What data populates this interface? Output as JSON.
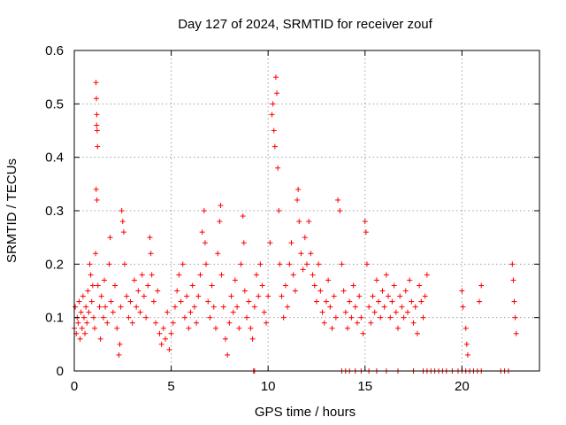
{
  "chart_data": {
    "type": "scatter",
    "title": "Day 127 of 2024, SRMTID for receiver zouf",
    "xlabel": "GPS time / hours",
    "ylabel": "SRMTID / TECUs",
    "xlim": [
      0,
      24
    ],
    "ylim": [
      0,
      0.6
    ],
    "x_ticks": [
      0,
      5,
      10,
      15,
      20
    ],
    "x_tick_labels": [
      "0",
      "5",
      "10",
      "15",
      "20"
    ],
    "y_ticks": [
      0,
      0.1,
      0.2,
      0.3,
      0.4,
      0.5,
      0.6
    ],
    "y_tick_labels": [
      "0",
      "0.1",
      "0.2",
      "0.3",
      "0.4",
      "0.5",
      "0.6"
    ],
    "grid": true,
    "marker": "+",
    "color": "#ff0000",
    "series": [
      {
        "name": "SRMTID",
        "points": [
          [
            0.0,
            0.08
          ],
          [
            0.05,
            0.12
          ],
          [
            0.1,
            0.07
          ],
          [
            0.15,
            0.1
          ],
          [
            0.2,
            0.09
          ],
          [
            0.25,
            0.13
          ],
          [
            0.3,
            0.06
          ],
          [
            0.35,
            0.11
          ],
          [
            0.4,
            0.08
          ],
          [
            0.45,
            0.14
          ],
          [
            0.5,
            0.1
          ],
          [
            0.55,
            0.07
          ],
          [
            0.6,
            0.12
          ],
          [
            0.65,
            0.09
          ],
          [
            0.7,
            0.15
          ],
          [
            0.75,
            0.11
          ],
          [
            0.8,
            0.2
          ],
          [
            0.85,
            0.18
          ],
          [
            0.9,
            0.13
          ],
          [
            0.95,
            0.16
          ],
          [
            1.0,
            0.1
          ],
          [
            1.05,
            0.08
          ],
          [
            1.1,
            0.22
          ],
          [
            1.12,
            0.54
          ],
          [
            1.14,
            0.51
          ],
          [
            1.16,
            0.48
          ],
          [
            1.18,
            0.45
          ],
          [
            1.2,
            0.42
          ],
          [
            1.15,
            0.46
          ],
          [
            1.13,
            0.34
          ],
          [
            1.17,
            0.32
          ],
          [
            1.22,
            0.16
          ],
          [
            1.3,
            0.12
          ],
          [
            1.35,
            0.06
          ],
          [
            1.4,
            0.14
          ],
          [
            1.5,
            0.1
          ],
          [
            1.55,
            0.17
          ],
          [
            1.6,
            0.12
          ],
          [
            1.7,
            0.09
          ],
          [
            1.8,
            0.2
          ],
          [
            1.85,
            0.25
          ],
          [
            1.9,
            0.13
          ],
          [
            2.0,
            0.11
          ],
          [
            2.1,
            0.16
          ],
          [
            2.2,
            0.08
          ],
          [
            2.3,
            0.03
          ],
          [
            2.35,
            0.05
          ],
          [
            2.4,
            0.12
          ],
          [
            2.45,
            0.3
          ],
          [
            2.5,
            0.28
          ],
          [
            2.55,
            0.26
          ],
          [
            2.6,
            0.2
          ],
          [
            2.7,
            0.14
          ],
          [
            2.8,
            0.1
          ],
          [
            2.9,
            0.13
          ],
          [
            3.0,
            0.09
          ],
          [
            3.1,
            0.17
          ],
          [
            3.2,
            0.12
          ],
          [
            3.3,
            0.15
          ],
          [
            3.4,
            0.11
          ],
          [
            3.5,
            0.18
          ],
          [
            3.6,
            0.14
          ],
          [
            3.7,
            0.1
          ],
          [
            3.8,
            0.16
          ],
          [
            3.9,
            0.25
          ],
          [
            3.95,
            0.22
          ],
          [
            4.0,
            0.18
          ],
          [
            4.1,
            0.13
          ],
          [
            4.2,
            0.09
          ],
          [
            4.3,
            0.15
          ],
          [
            4.4,
            0.07
          ],
          [
            4.5,
            0.05
          ],
          [
            4.6,
            0.08
          ],
          [
            4.7,
            0.06
          ],
          [
            4.8,
            0.11
          ],
          [
            4.9,
            0.04
          ],
          [
            5.0,
            0.07
          ],
          [
            5.1,
            0.09
          ],
          [
            5.2,
            0.12
          ],
          [
            5.3,
            0.15
          ],
          [
            5.4,
            0.18
          ],
          [
            5.5,
            0.13
          ],
          [
            5.6,
            0.2
          ],
          [
            5.7,
            0.1
          ],
          [
            5.8,
            0.14
          ],
          [
            5.9,
            0.08
          ],
          [
            6.0,
            0.11
          ],
          [
            6.1,
            0.16
          ],
          [
            6.2,
            0.12
          ],
          [
            6.3,
            0.09
          ],
          [
            6.4,
            0.14
          ],
          [
            6.5,
            0.18
          ],
          [
            6.6,
            0.26
          ],
          [
            6.7,
            0.3
          ],
          [
            6.75,
            0.24
          ],
          [
            6.8,
            0.2
          ],
          [
            6.9,
            0.13
          ],
          [
            7.0,
            0.1
          ],
          [
            7.1,
            0.16
          ],
          [
            7.2,
            0.12
          ],
          [
            7.3,
            0.08
          ],
          [
            7.4,
            0.22
          ],
          [
            7.5,
            0.28
          ],
          [
            7.55,
            0.31
          ],
          [
            7.6,
            0.18
          ],
          [
            7.7,
            0.12
          ],
          [
            7.8,
            0.06
          ],
          [
            7.9,
            0.03
          ],
          [
            8.0,
            0.09
          ],
          [
            8.1,
            0.14
          ],
          [
            8.2,
            0.11
          ],
          [
            8.3,
            0.17
          ],
          [
            8.4,
            0.12
          ],
          [
            8.5,
            0.08
          ],
          [
            8.6,
            0.2
          ],
          [
            8.7,
            0.29
          ],
          [
            8.75,
            0.24
          ],
          [
            8.8,
            0.15
          ],
          [
            8.9,
            0.1
          ],
          [
            9.0,
            0.13
          ],
          [
            9.1,
            0.08
          ],
          [
            9.2,
            0.06
          ],
          [
            9.3,
            0.12
          ],
          [
            9.4,
            0.18
          ],
          [
            9.5,
            0.14
          ],
          [
            9.6,
            0.2
          ],
          [
            9.7,
            0.16
          ],
          [
            9.8,
            0.11
          ],
          [
            9.9,
            0.09
          ],
          [
            10.0,
            0.14
          ],
          [
            10.1,
            0.24
          ],
          [
            10.2,
            0.48
          ],
          [
            10.25,
            0.5
          ],
          [
            10.3,
            0.45
          ],
          [
            10.35,
            0.42
          ],
          [
            10.4,
            0.55
          ],
          [
            10.45,
            0.52
          ],
          [
            10.5,
            0.38
          ],
          [
            10.55,
            0.3
          ],
          [
            10.6,
            0.2
          ],
          [
            10.7,
            0.14
          ],
          [
            10.8,
            0.1
          ],
          [
            10.9,
            0.16
          ],
          [
            11.0,
            0.12
          ],
          [
            11.1,
            0.2
          ],
          [
            11.2,
            0.24
          ],
          [
            11.3,
            0.18
          ],
          [
            11.4,
            0.15
          ],
          [
            11.5,
            0.32
          ],
          [
            11.55,
            0.34
          ],
          [
            11.6,
            0.28
          ],
          [
            11.7,
            0.22
          ],
          [
            11.8,
            0.19
          ],
          [
            11.9,
            0.25
          ],
          [
            12.0,
            0.2
          ],
          [
            12.1,
            0.28
          ],
          [
            12.2,
            0.22
          ],
          [
            12.3,
            0.18
          ],
          [
            12.4,
            0.16
          ],
          [
            12.5,
            0.13
          ],
          [
            12.6,
            0.2
          ],
          [
            12.7,
            0.15
          ],
          [
            12.8,
            0.11
          ],
          [
            12.9,
            0.09
          ],
          [
            13.0,
            0.13
          ],
          [
            13.1,
            0.17
          ],
          [
            13.2,
            0.12
          ],
          [
            13.3,
            0.08
          ],
          [
            13.4,
            0.14
          ],
          [
            13.5,
            0.1
          ],
          [
            13.6,
            0.32
          ],
          [
            13.7,
            0.3
          ],
          [
            13.8,
            0.2
          ],
          [
            13.9,
            0.15
          ],
          [
            14.0,
            0.11
          ],
          [
            14.1,
            0.08
          ],
          [
            14.2,
            0.13
          ],
          [
            14.3,
            0.1
          ],
          [
            14.4,
            0.16
          ],
          [
            14.5,
            0.12
          ],
          [
            14.6,
            0.09
          ],
          [
            14.7,
            0.14
          ],
          [
            14.8,
            0.1
          ],
          [
            14.9,
            0.07
          ],
          [
            15.0,
            0.28
          ],
          [
            15.05,
            0.26
          ],
          [
            15.1,
            0.2
          ],
          [
            15.2,
            0.12
          ],
          [
            15.3,
            0.09
          ],
          [
            15.4,
            0.14
          ],
          [
            15.5,
            0.11
          ],
          [
            15.6,
            0.17
          ],
          [
            15.7,
            0.13
          ],
          [
            15.8,
            0.1
          ],
          [
            15.9,
            0.15
          ],
          [
            16.0,
            0.12
          ],
          [
            16.1,
            0.18
          ],
          [
            16.2,
            0.14
          ],
          [
            16.3,
            0.1
          ],
          [
            16.4,
            0.13
          ],
          [
            16.5,
            0.16
          ],
          [
            16.6,
            0.11
          ],
          [
            16.7,
            0.08
          ],
          [
            16.8,
            0.14
          ],
          [
            16.9,
            0.12
          ],
          [
            17.0,
            0.1
          ],
          [
            17.1,
            0.15
          ],
          [
            17.2,
            0.11
          ],
          [
            17.3,
            0.17
          ],
          [
            17.4,
            0.13
          ],
          [
            17.5,
            0.09
          ],
          [
            17.6,
            0.12
          ],
          [
            17.7,
            0.07
          ],
          [
            17.8,
            0.16
          ],
          [
            17.9,
            0.13
          ],
          [
            18.0,
            0.1
          ],
          [
            18.1,
            0.14
          ],
          [
            18.2,
            0.18
          ],
          [
            20.0,
            0.15
          ],
          [
            20.05,
            0.12
          ],
          [
            20.2,
            0.08
          ],
          [
            20.25,
            0.05
          ],
          [
            20.3,
            0.03
          ],
          [
            20.9,
            0.13
          ],
          [
            21.0,
            0.16
          ],
          [
            22.6,
            0.2
          ],
          [
            22.65,
            0.17
          ],
          [
            22.7,
            0.13
          ],
          [
            22.75,
            0.1
          ],
          [
            22.8,
            0.07
          ],
          [
            9.25,
            0.0
          ],
          [
            9.3,
            0.0
          ],
          [
            13.8,
            0.0
          ],
          [
            14.0,
            0.0
          ],
          [
            14.2,
            0.0
          ],
          [
            14.5,
            0.0
          ],
          [
            14.8,
            0.0
          ],
          [
            15.2,
            0.0
          ],
          [
            15.6,
            0.0
          ],
          [
            16.1,
            0.0
          ],
          [
            16.7,
            0.0
          ],
          [
            17.5,
            0.0
          ],
          [
            18.0,
            0.0
          ],
          [
            18.2,
            0.0
          ],
          [
            18.4,
            0.0
          ],
          [
            18.6,
            0.0
          ],
          [
            18.8,
            0.0
          ],
          [
            19.0,
            0.0
          ],
          [
            19.2,
            0.0
          ],
          [
            19.5,
            0.0
          ],
          [
            19.8,
            0.0
          ],
          [
            20.0,
            0.0
          ],
          [
            20.2,
            0.0
          ],
          [
            20.4,
            0.0
          ],
          [
            20.6,
            0.0
          ],
          [
            20.8,
            0.0
          ],
          [
            21.0,
            0.0
          ],
          [
            22.0,
            0.0
          ],
          [
            22.2,
            0.0
          ],
          [
            22.4,
            0.0
          ]
        ]
      }
    ]
  }
}
